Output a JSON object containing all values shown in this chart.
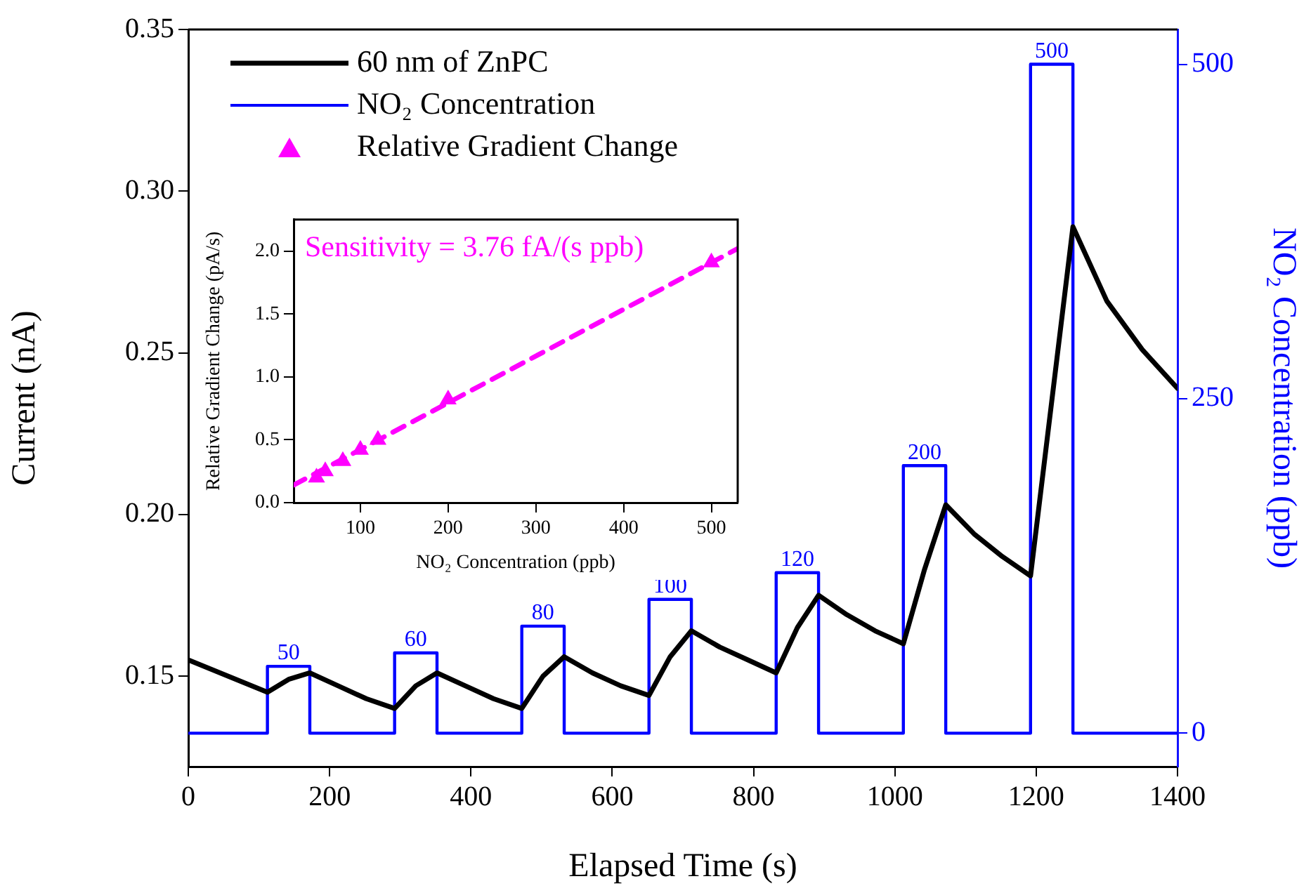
{
  "chart_data": [
    {
      "type": "line",
      "xlabel": "Elapsed Time (s)",
      "ylabel": "Current (nA)",
      "y2label": "NO₂ Concentration (ppb)",
      "xlim": [
        0,
        1400
      ],
      "xticks": [
        0,
        200,
        400,
        600,
        800,
        1000,
        1200,
        1400
      ],
      "ylim": [
        0.122,
        0.35
      ],
      "yticks": [
        0.15,
        {
          "value": 0.2,
          "label": "0.20"
        },
        0.25,
        {
          "value": 0.3,
          "label": "0.30"
        },
        0.35
      ],
      "y2lim": [
        -25,
        526
      ],
      "y2ticks": [
        0,
        250,
        500
      ],
      "legend": "top left",
      "grid": false,
      "series": [
        {
          "name": "60 nm of ZnPC",
          "color": "#000000",
          "marker": "none",
          "x": [
            0,
            56,
            112,
            142,
            172,
            212,
            252,
            292,
            322,
            352,
            392,
            432,
            472,
            502,
            532,
            572,
            612,
            652,
            682,
            712,
            752,
            792,
            832,
            862,
            892,
            932,
            972,
            1012,
            1042,
            1072,
            1112,
            1152,
            1192,
            1222,
            1252,
            1300,
            1350,
            1400
          ],
          "values": [
            0.155,
            0.15,
            0.145,
            0.149,
            0.151,
            0.147,
            0.143,
            0.14,
            0.147,
            0.151,
            0.147,
            0.143,
            0.14,
            0.15,
            0.156,
            0.151,
            0.147,
            0.144,
            0.156,
            0.164,
            0.159,
            0.155,
            0.151,
            0.165,
            0.175,
            0.169,
            0.164,
            0.16,
            0.183,
            0.203,
            0.194,
            0.187,
            0.181,
            0.235,
            0.289,
            0.266,
            0.251,
            0.239
          ]
        },
        {
          "name": "NO₂ Concentration",
          "type": "step",
          "axis": "y2",
          "color": "#0000ff",
          "marker": "none",
          "x": [
            0,
            112,
            172,
            292,
            352,
            472,
            532,
            652,
            712,
            832,
            892,
            1012,
            1072,
            1192,
            1252,
            1400
          ],
          "values": [
            0,
            50,
            0,
            60,
            0,
            80,
            0,
            100,
            0,
            120,
            0,
            200,
            0,
            500,
            0,
            0
          ],
          "value_labels": [
            null,
            "50",
            null,
            "60",
            null,
            "80",
            null,
            "100",
            null,
            "120",
            null,
            "200",
            null,
            "500",
            null,
            null
          ]
        }
      ]
    },
    {
      "type": "scatter",
      "xlabel": "NO₂ Concentration (ppb)",
      "ylabel": "Relative Gradient Change (pA/s)",
      "xlim": [
        24,
        530
      ],
      "xticks": [
        100,
        200,
        300,
        400,
        500
      ],
      "ylim": [
        0,
        2.25
      ],
      "yticks": [
        {
          "value": 0,
          "label": "0.0"
        },
        0.5,
        {
          "value": 1,
          "label": "1.0"
        },
        1.5,
        {
          "value": 2,
          "label": "2.0"
        }
      ],
      "grid": false,
      "legend": false,
      "series": [
        {
          "name": "Relative Gradient Change",
          "color": "#ff00ff",
          "marker": "triangle",
          "x": [
            50,
            60,
            80,
            100,
            120,
            200,
            500
          ],
          "values": [
            0.2,
            0.25,
            0.33,
            0.42,
            0.5,
            0.82,
            1.91
          ]
        },
        {
          "type": "line",
          "color": "#ff00ff",
          "marker": "none",
          "line_style": "dashed",
          "x": [
            24,
            530
          ],
          "values": [
            0.14,
            2.02
          ]
        }
      ],
      "annotations": [
        "Sensitivity = 3.76 fA/(s ppb)"
      ]
    }
  ]
}
